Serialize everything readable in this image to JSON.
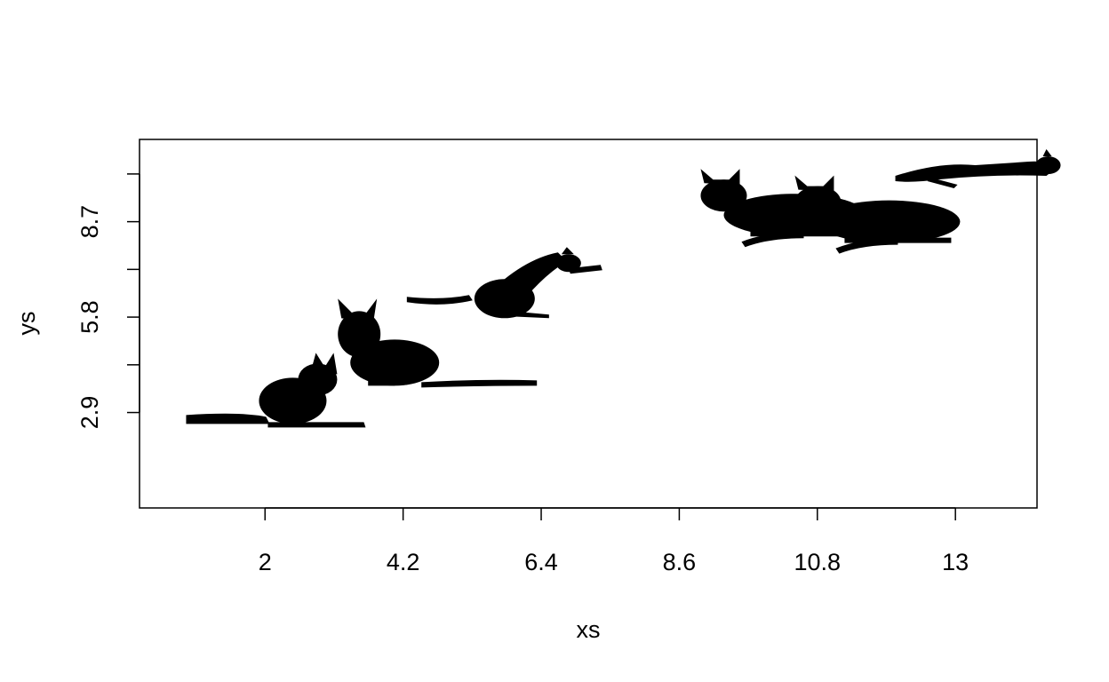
{
  "chart_data": {
    "type": "scatter",
    "marker": "cat-silhouette",
    "xlabel": "xs",
    "ylabel": "ys",
    "x_ticks": [
      2,
      4.2,
      6.4,
      8.6,
      10.8,
      13
    ],
    "x_tick_labels": [
      "2",
      "4.2",
      "6.4",
      "8.6",
      "10.8",
      "13"
    ],
    "y_ticks": [
      2.9,
      4.35,
      5.8,
      7.25,
      8.7,
      10.15
    ],
    "y_tick_labels": [
      "2.9",
      "",
      "5.8",
      "",
      "8.7",
      ""
    ],
    "xlim": [
      0,
      14.3
    ],
    "ylim": [
      0,
      11.2
    ],
    "grid": false,
    "legend": "none",
    "points": [
      {
        "x": 2.3,
        "y": 2.5,
        "pose": "sitting-left"
      },
      {
        "x": 3.5,
        "y": 4.2,
        "pose": "sitting-right"
      },
      {
        "x": 6.1,
        "y": 6.2,
        "pose": "pouncing"
      },
      {
        "x": 10.3,
        "y": 8.9,
        "pose": "lying"
      },
      {
        "x": 11.8,
        "y": 8.7,
        "pose": "lying"
      },
      {
        "x": 13.6,
        "y": 10.2,
        "pose": "stretching"
      }
    ],
    "colors": {
      "marker": "#000000",
      "axis": "#000000",
      "background": "#ffffff"
    }
  }
}
